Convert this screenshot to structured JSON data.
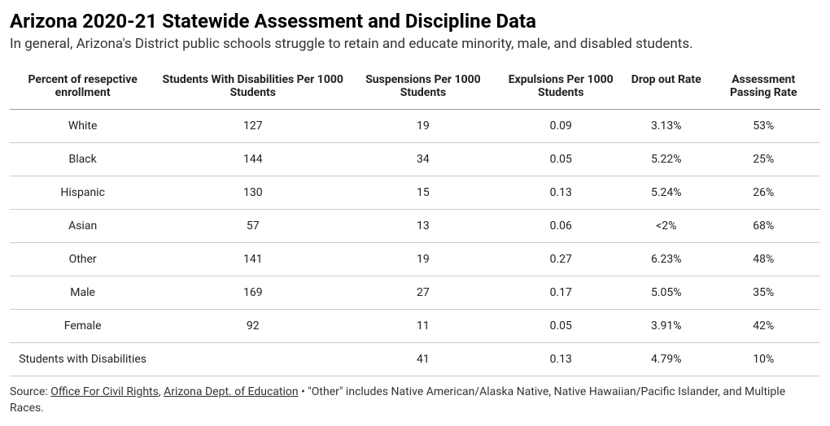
{
  "header": {
    "title": "Arizona 2020-21 Statewide Assessment and Discipline Data",
    "subtitle": "In general, Arizona's District public schools struggle to retain and educate minority, male, and disabled students."
  },
  "table": {
    "type": "table",
    "columns": [
      "Percent of resepctive enrollment",
      "Students With Disabilities Per 1000 Students",
      "Suspensions Per 1000 Students",
      "Expulsions Per 1000 Students",
      "Drop out Rate",
      "Assessment Passing Rate"
    ],
    "column_widths_pct": [
      18,
      24,
      18,
      16,
      10,
      14
    ],
    "header_fontsize": 14,
    "header_fontweight": 700,
    "cell_fontsize": 14,
    "header_border_color": "#999999",
    "row_border_color": "#cccccc",
    "text_color": "#222222",
    "background_color": "#ffffff",
    "rows": [
      [
        "White",
        "127",
        "19",
        "0.09",
        "3.13%",
        "53%"
      ],
      [
        "Black",
        "144",
        "34",
        "0.05",
        "5.22%",
        "25%"
      ],
      [
        "Hispanic",
        "130",
        "15",
        "0.13",
        "5.24%",
        "26%"
      ],
      [
        "Asian",
        "57",
        "13",
        "0.06",
        "<2%",
        "68%"
      ],
      [
        "Other",
        "141",
        "19",
        "0.27",
        "6.23%",
        "48%"
      ],
      [
        "Male",
        "169",
        "27",
        "0.17",
        "5.05%",
        "35%"
      ],
      [
        "Female",
        "92",
        "11",
        "0.05",
        "3.91%",
        "42%"
      ],
      [
        "Students with Disabilities",
        "",
        "41",
        "0.13",
        "4.79%",
        "10%"
      ]
    ]
  },
  "footer": {
    "source_prefix": "Source: ",
    "link1_text": "Office For Civil Rights",
    "separator1": ", ",
    "link2_text": "Arizona Dept. of Education",
    "note": " • \"Other\" includes Native American/Alaska Native, Native Hawaiian/Pacific Islander, and Multiple Races."
  }
}
